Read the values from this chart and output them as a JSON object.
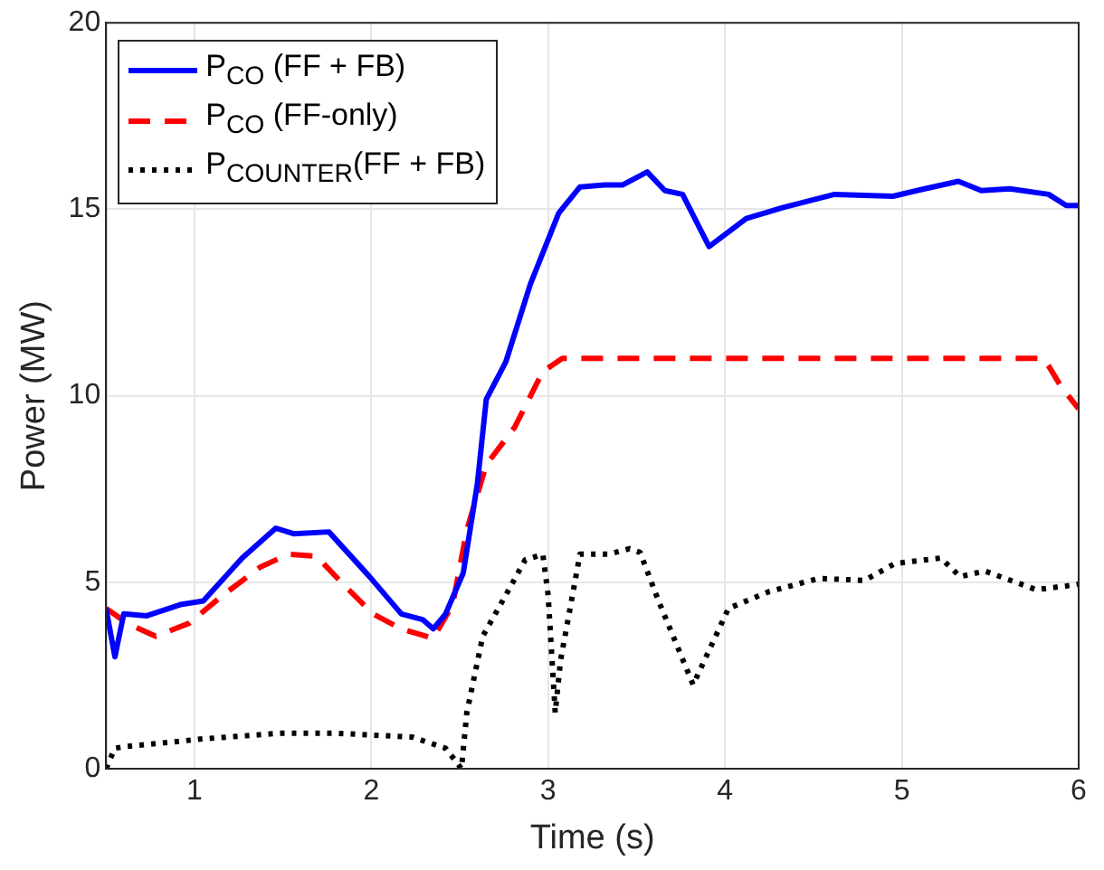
{
  "chart_data": {
    "type": "line",
    "xlabel": "Time (s)",
    "ylabel": "Power (MW)",
    "xlim": [
      0.5,
      6
    ],
    "xticks": [
      1,
      2,
      3,
      4,
      5,
      6
    ],
    "ylim": [
      0,
      20
    ],
    "yticks": [
      0,
      5,
      10,
      15,
      20
    ],
    "grid": true,
    "legend": "top left",
    "marker": "none",
    "series": [
      {
        "name": "P$_{CO}$ (FF + FB)",
        "color": "#0000ff",
        "line_style": "solid",
        "x": [
          0.5,
          0.55,
          0.6,
          0.73,
          0.92,
          1.05,
          1.27,
          1.46,
          1.56,
          1.76,
          1.99,
          2.17,
          2.29,
          2.35,
          2.42,
          2.52,
          2.6,
          2.65,
          2.76,
          2.9,
          3.06,
          3.18,
          3.32,
          3.42,
          3.56,
          3.66,
          3.76,
          3.91,
          4.12,
          4.33,
          4.62,
          4.95,
          5.13,
          5.32,
          5.45,
          5.61,
          5.83,
          5.93,
          6.0
        ],
        "values": [
          4.3,
          3.0,
          4.15,
          4.1,
          4.4,
          4.5,
          5.65,
          6.45,
          6.3,
          6.35,
          5.15,
          4.15,
          4.0,
          3.75,
          4.15,
          5.25,
          7.65,
          9.9,
          10.9,
          13,
          14.9,
          15.6,
          15.65,
          15.65,
          16.0,
          15.5,
          15.4,
          14.0,
          14.75,
          15.05,
          15.4,
          15.35,
          15.55,
          15.75,
          15.5,
          15.55,
          15.4,
          15.1,
          15.1
        ]
      },
      {
        "name": "P$_{CO}$ (FF-only)",
        "color": "#ff0000",
        "line_style": "dashed",
        "x": [
          0.5,
          0.62,
          0.78,
          0.97,
          1.16,
          1.37,
          1.53,
          1.69,
          1.85,
          2.01,
          2.17,
          2.35,
          2.46,
          2.54,
          2.65,
          2.81,
          2.97,
          3.08,
          3.5,
          4.0,
          4.5,
          5.0,
          5.5,
          5.8,
          5.83,
          5.9,
          6.0
        ],
        "values": [
          4.3,
          3.9,
          3.55,
          3.9,
          4.65,
          5.4,
          5.75,
          5.7,
          4.9,
          4.15,
          3.75,
          3.5,
          4.4,
          6.4,
          8.15,
          9.15,
          10.65,
          11,
          11,
          11,
          11,
          11,
          11,
          11,
          10.8,
          10.25,
          9.65
        ]
      },
      {
        "name": "P$_{COUNTER}$(FF + FB)",
        "color": "#000000",
        "line_style": "dotted",
        "x": [
          0.5,
          0.55,
          0.62,
          0.73,
          1.05,
          1.48,
          1.8,
          2.23,
          2.42,
          2.51,
          2.54,
          2.63,
          2.76,
          2.87,
          2.97,
          3.0,
          3.04,
          3.07,
          3.18,
          3.34,
          3.46,
          3.52,
          3.62,
          3.82,
          4.02,
          4.25,
          4.53,
          4.79,
          4.96,
          5.22,
          5.33,
          5.47,
          5.76,
          5.93,
          6.0
        ],
        "values": [
          0,
          0.55,
          0.6,
          0.65,
          0.8,
          0.95,
          0.95,
          0.85,
          0.55,
          0,
          1.5,
          3.55,
          4.65,
          5.6,
          5.75,
          4.65,
          1.5,
          2.9,
          5.75,
          5.75,
          5.9,
          5.8,
          4.55,
          2.25,
          4.3,
          4.75,
          5.1,
          5.05,
          5.5,
          5.65,
          5.15,
          5.3,
          4.8,
          4.9,
          4.95
        ]
      }
    ]
  }
}
